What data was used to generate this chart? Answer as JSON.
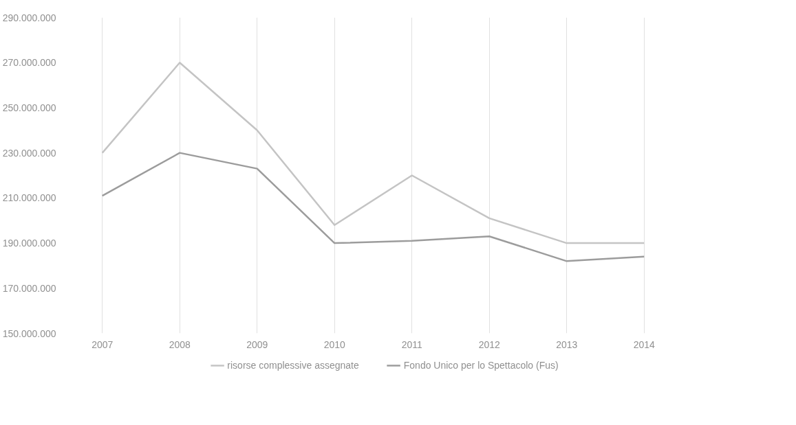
{
  "chart_data": {
    "type": "line",
    "categories": [
      "2007",
      "2008",
      "2009",
      "2010",
      "2011",
      "2012",
      "2013",
      "2014"
    ],
    "series": [
      {
        "name": "risorse complessive assegnate",
        "color": "#c4c4c4",
        "values": [
          230000000,
          270000000,
          240000000,
          198000000,
          220000000,
          201000000,
          190000000,
          190000000
        ]
      },
      {
        "name": "Fondo Unico per lo Spettacolo (Fus)",
        "color": "#9c9c9c",
        "values": [
          211000000,
          230000000,
          223000000,
          190000000,
          191000000,
          193000000,
          182000000,
          184000000
        ]
      }
    ],
    "ylim": [
      150000000,
      290000000
    ],
    "yticks": [
      {
        "value": 150000000,
        "label": "150.000.000"
      },
      {
        "value": 170000000,
        "label": "170.000.000"
      },
      {
        "value": 190000000,
        "label": "190.000.000"
      },
      {
        "value": 210000000,
        "label": "210.000.000"
      },
      {
        "value": 230000000,
        "label": "230.000.000"
      },
      {
        "value": 250000000,
        "label": "250.000.000"
      },
      {
        "value": 270000000,
        "label": "270.000.000"
      },
      {
        "value": 290000000,
        "label": "290.000.000"
      }
    ],
    "grid": "x",
    "legend": "bottom",
    "line_style": "solid"
  }
}
